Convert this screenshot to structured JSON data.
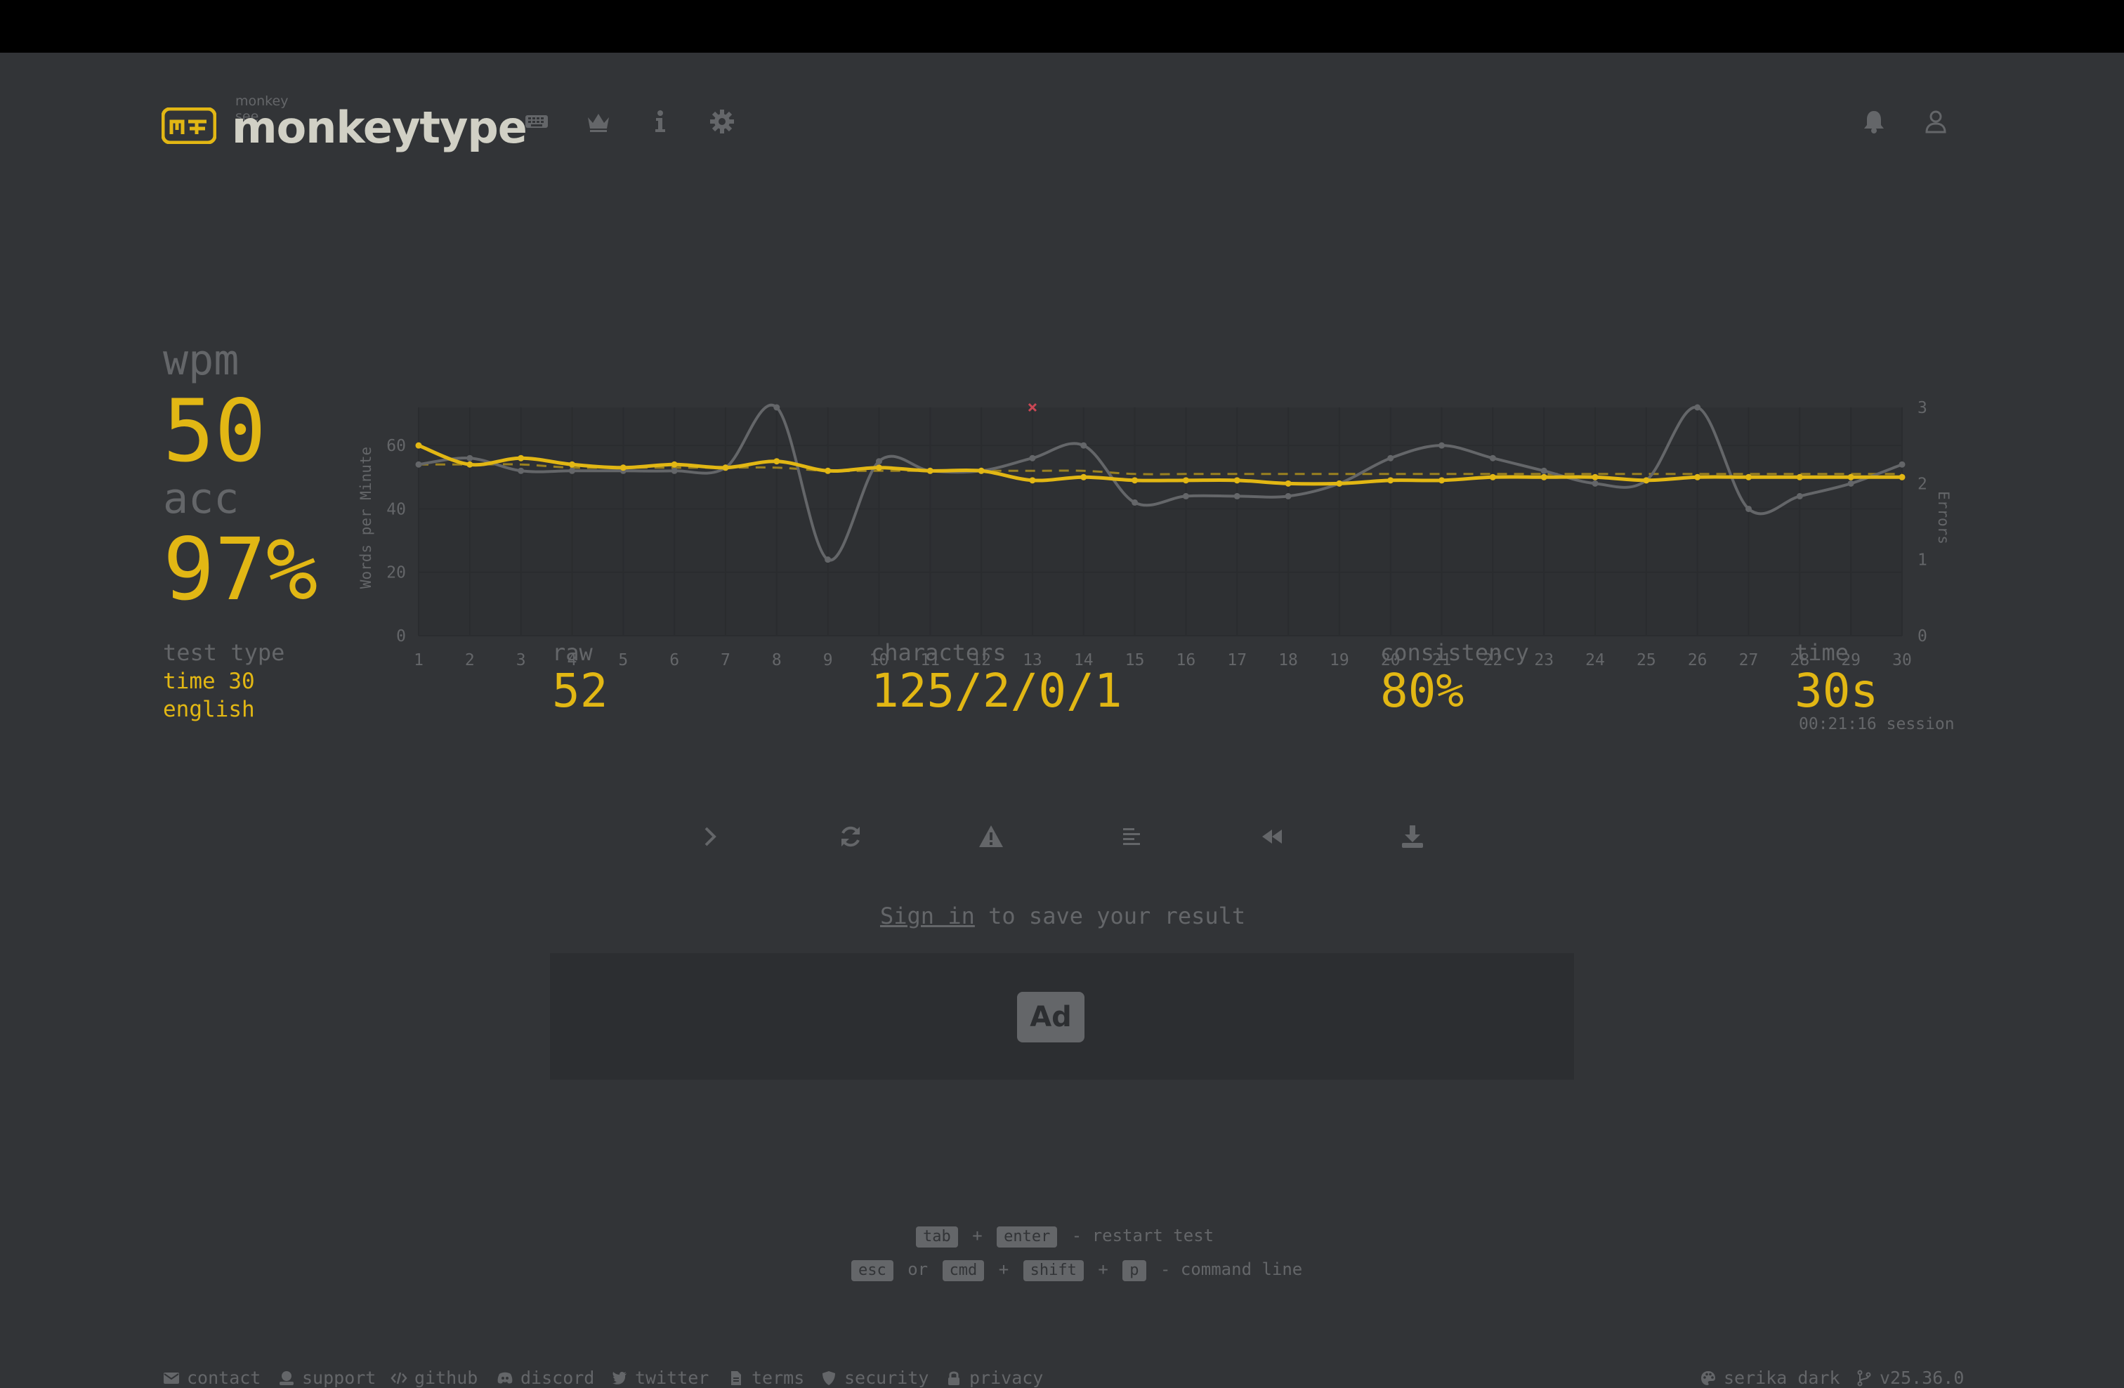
{
  "brand": {
    "tagline": "monkey see",
    "name": "monkeytype"
  },
  "nav": [
    "keyboard-icon",
    "crown-icon",
    "info-icon",
    "gear-icon"
  ],
  "header_right": [
    "bell-icon",
    "user-icon"
  ],
  "result": {
    "wpm_label": "wpm",
    "wpm": "50",
    "acc_label": "acc",
    "acc": "97%",
    "test_type_label": "test type",
    "test_mode": "time 30",
    "language": "english",
    "raw_label": "raw",
    "raw": "52",
    "characters_label": "characters",
    "characters": "125/2/0/1",
    "consistency_label": "consistency",
    "consistency": "80%",
    "time_label": "time",
    "time": "30s",
    "session": "00:21:16 session"
  },
  "chart_data": {
    "type": "line",
    "x": [
      1,
      2,
      3,
      4,
      5,
      6,
      7,
      8,
      9,
      10,
      11,
      12,
      13,
      14,
      15,
      16,
      17,
      18,
      19,
      20,
      21,
      22,
      23,
      24,
      25,
      26,
      27,
      28,
      29,
      30
    ],
    "ylabel": "Words per Minute",
    "y2label": "Errors",
    "ylim": [
      0,
      72
    ],
    "y2lim": [
      0,
      3
    ],
    "yticks": [
      0,
      20,
      40,
      60
    ],
    "y2ticks": [
      0,
      1,
      2,
      3
    ],
    "series": [
      {
        "role": "wpm",
        "color": "#e2b714",
        "values": [
          60,
          54,
          56,
          54,
          53,
          54,
          53,
          55,
          52,
          53,
          52,
          52,
          49,
          50,
          49,
          49,
          49,
          48,
          48,
          49,
          49,
          50,
          50,
          50,
          49,
          50,
          50,
          50,
          50,
          50
        ]
      },
      {
        "role": "raw",
        "color": "#646669",
        "values": [
          54,
          56,
          52,
          52,
          52,
          52,
          53,
          72,
          24,
          55,
          52,
          52,
          56,
          60,
          42,
          44,
          44,
          44,
          48,
          56,
          60,
          56,
          52,
          48,
          49,
          72,
          40,
          44,
          48,
          54
        ]
      },
      {
        "role": "burst-average",
        "color": "#e2b714",
        "dashed": true,
        "values": [
          54,
          54,
          54,
          53,
          53,
          53,
          53,
          53,
          52,
          52,
          52,
          52,
          52,
          52,
          51,
          51,
          51,
          51,
          51,
          51,
          51,
          51,
          51,
          51,
          51,
          51,
          51,
          51,
          51,
          51
        ]
      }
    ],
    "errors": [
      {
        "x": 13,
        "value": 3
      }
    ]
  },
  "actions": [
    "next-test-button",
    "restart-button",
    "report-button",
    "words-history-button",
    "replay-button",
    "save-screenshot-button"
  ],
  "signin": {
    "link": "Sign in",
    "rest": " to save your result"
  },
  "ad": {
    "label": "Ad"
  },
  "hints": {
    "line1": {
      "k1": "tab",
      "plus": "+",
      "k2": "enter",
      "text": "- restart test"
    },
    "line2": {
      "k1": "esc",
      "or": "or",
      "k2": "cmd",
      "p1": "+",
      "k3": "shift",
      "p2": "+",
      "k4": "p",
      "text": "- command line"
    }
  },
  "footer": {
    "contact": "contact",
    "support": "support",
    "github": "github",
    "discord": "discord",
    "twitter": "twitter",
    "terms": "terms",
    "security": "security",
    "privacy": "privacy",
    "theme": "serika dark",
    "version": "v25.36.0"
  },
  "colors": {
    "bg": "#323437",
    "main": "#e2b714",
    "sub": "#646669",
    "text": "#d1d0c5",
    "error": "#ca4754"
  }
}
